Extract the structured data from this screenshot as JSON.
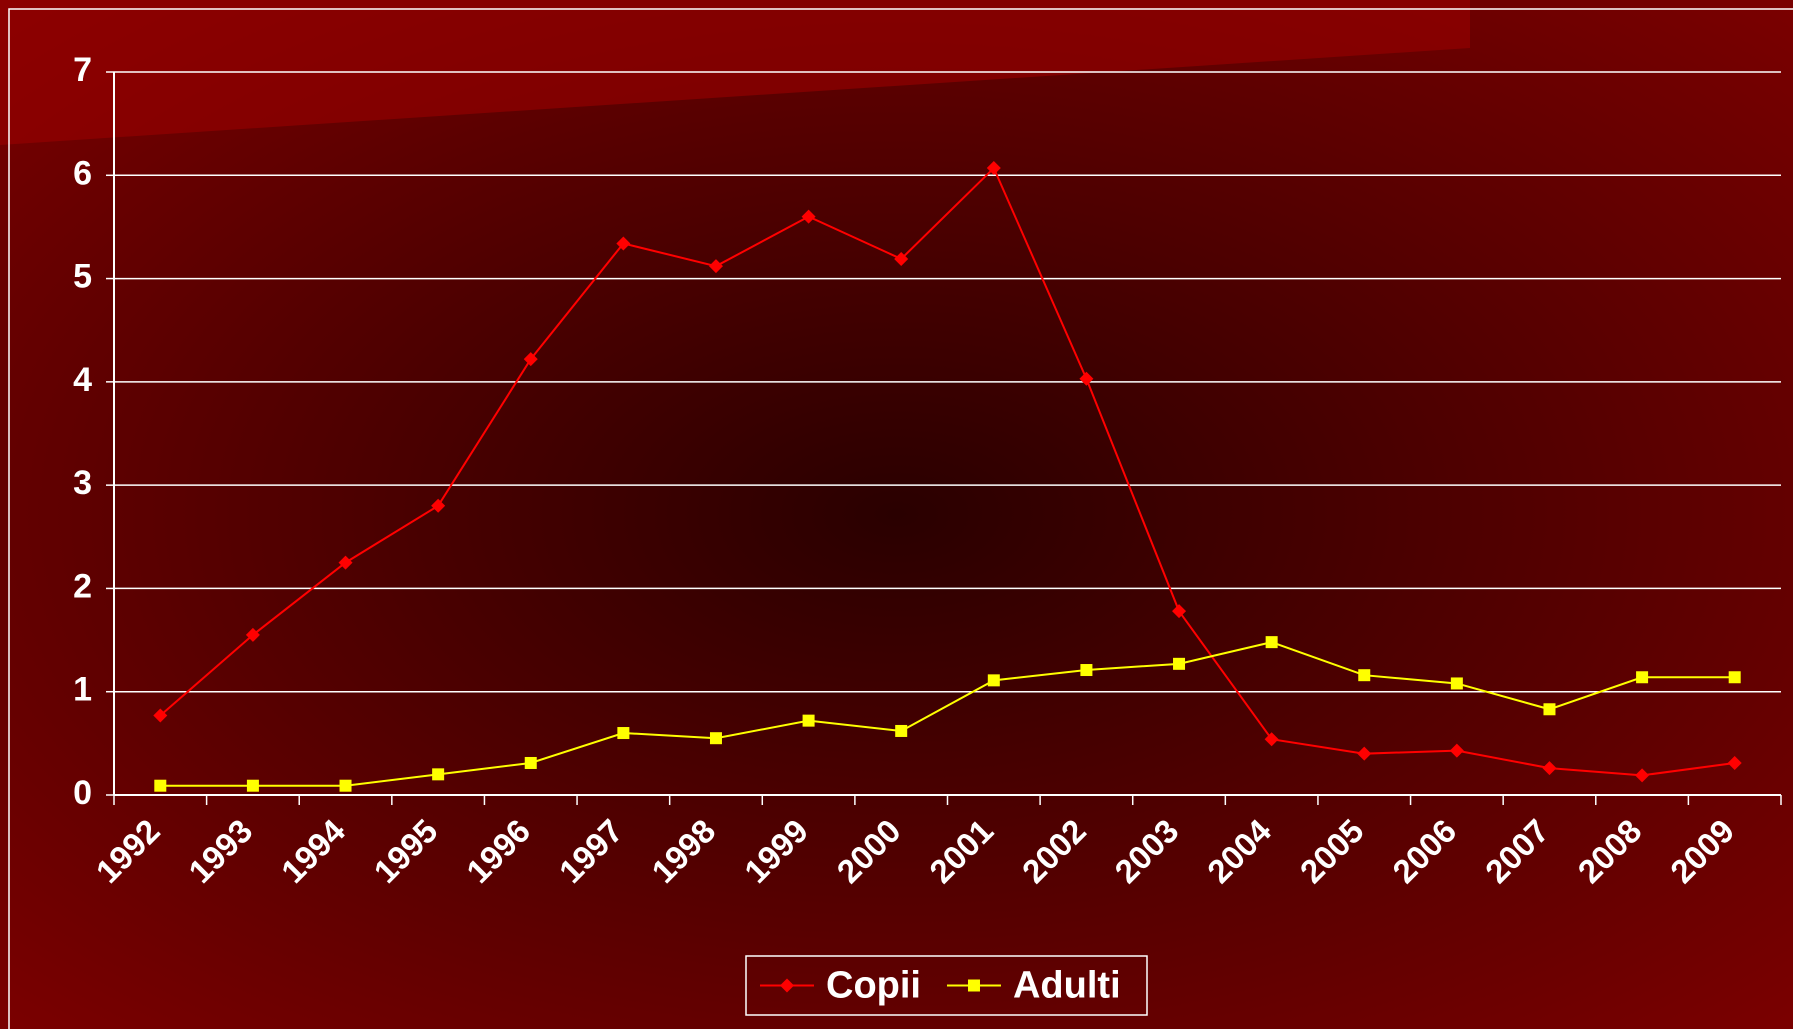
{
  "chart_data": {
    "type": "line",
    "categories": [
      "1992",
      "1993",
      "1994",
      "1995",
      "1996",
      "1997",
      "1998",
      "1999",
      "2000",
      "2001",
      "2002",
      "2003",
      "2004",
      "2005",
      "2006",
      "2007",
      "2008",
      "2009"
    ],
    "series": [
      {
        "name": "Copii",
        "color": "#ff0000",
        "marker": "diamond",
        "values": [
          0.77,
          1.55,
          2.25,
          2.8,
          4.22,
          5.34,
          5.12,
          5.6,
          5.19,
          6.07,
          4.03,
          1.78,
          0.54,
          0.4,
          0.43,
          0.26,
          0.19,
          0.31
        ]
      },
      {
        "name": "Adulti",
        "color": "#ffff00",
        "marker": "square",
        "values": [
          0.09,
          0.09,
          0.09,
          0.2,
          0.31,
          0.6,
          0.55,
          0.72,
          0.62,
          1.11,
          1.21,
          1.27,
          1.48,
          1.16,
          1.08,
          0.83,
          1.14,
          1.14
        ]
      }
    ],
    "ylim": [
      0,
      7
    ],
    "yticks": [
      0,
      1,
      2,
      3,
      4,
      5,
      6,
      7
    ],
    "grid": true,
    "legend": "bottom"
  }
}
